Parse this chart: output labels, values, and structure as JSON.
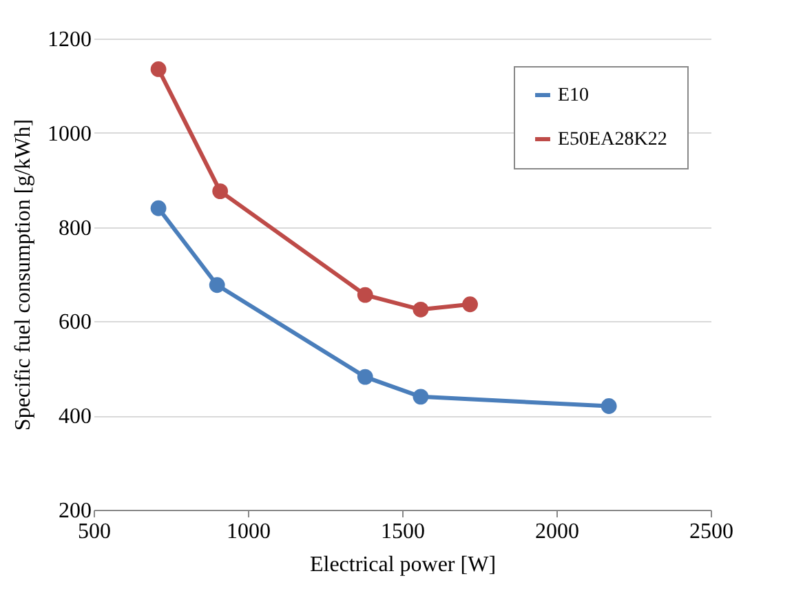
{
  "chart_data": {
    "type": "line",
    "xlabel": "Electrical power [W]",
    "ylabel": "Specific fuel consumption [g/kWh]",
    "xlim": [
      500,
      2500
    ],
    "xticks": [
      500,
      1000,
      1500,
      2000,
      2500
    ],
    "ylim": [
      200,
      1200
    ],
    "yticks": [
      200,
      400,
      600,
      800,
      1000,
      1200
    ],
    "grid": "y",
    "legend": "top right",
    "marker": "circle",
    "line_style": "solid",
    "series": [
      {
        "name": "E10",
        "color": "#4a7ebb",
        "x": [
          710,
          900,
          1380,
          1560,
          2170
        ],
        "values": [
          840,
          677,
          482,
          440,
          420
        ]
      },
      {
        "name": "E50EA28K22",
        "color": "#be4b48",
        "x": [
          710,
          910,
          1380,
          1560,
          1720
        ],
        "values": [
          1135,
          876,
          656,
          625,
          636
        ]
      }
    ]
  }
}
